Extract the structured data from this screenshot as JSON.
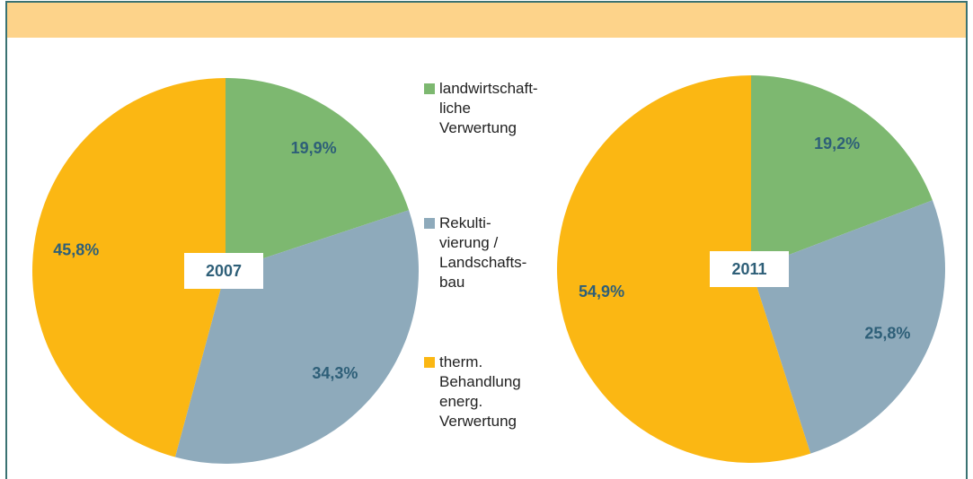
{
  "legend": {
    "labels": [
      "landwirtschaft-\nliche\nVerwertung",
      "Rekulti-\nvierung /\nLandschafts-\nbau",
      "therm.\nBehandlung\nenerg.\nVerwertung"
    ],
    "colors": [
      "#7db870",
      "#8eaabb",
      "#fbb713"
    ]
  },
  "chart_data": [
    {
      "type": "pie",
      "title": "2007",
      "values": [
        19.9,
        34.3,
        45.8
      ],
      "value_labels": [
        "19,9%",
        "34,3%",
        "45,8%"
      ]
    },
    {
      "type": "pie",
      "title": "2011",
      "values": [
        19.2,
        25.8,
        54.9
      ],
      "value_labels": [
        "19,2%",
        "25,8%",
        "54,9%"
      ]
    }
  ]
}
